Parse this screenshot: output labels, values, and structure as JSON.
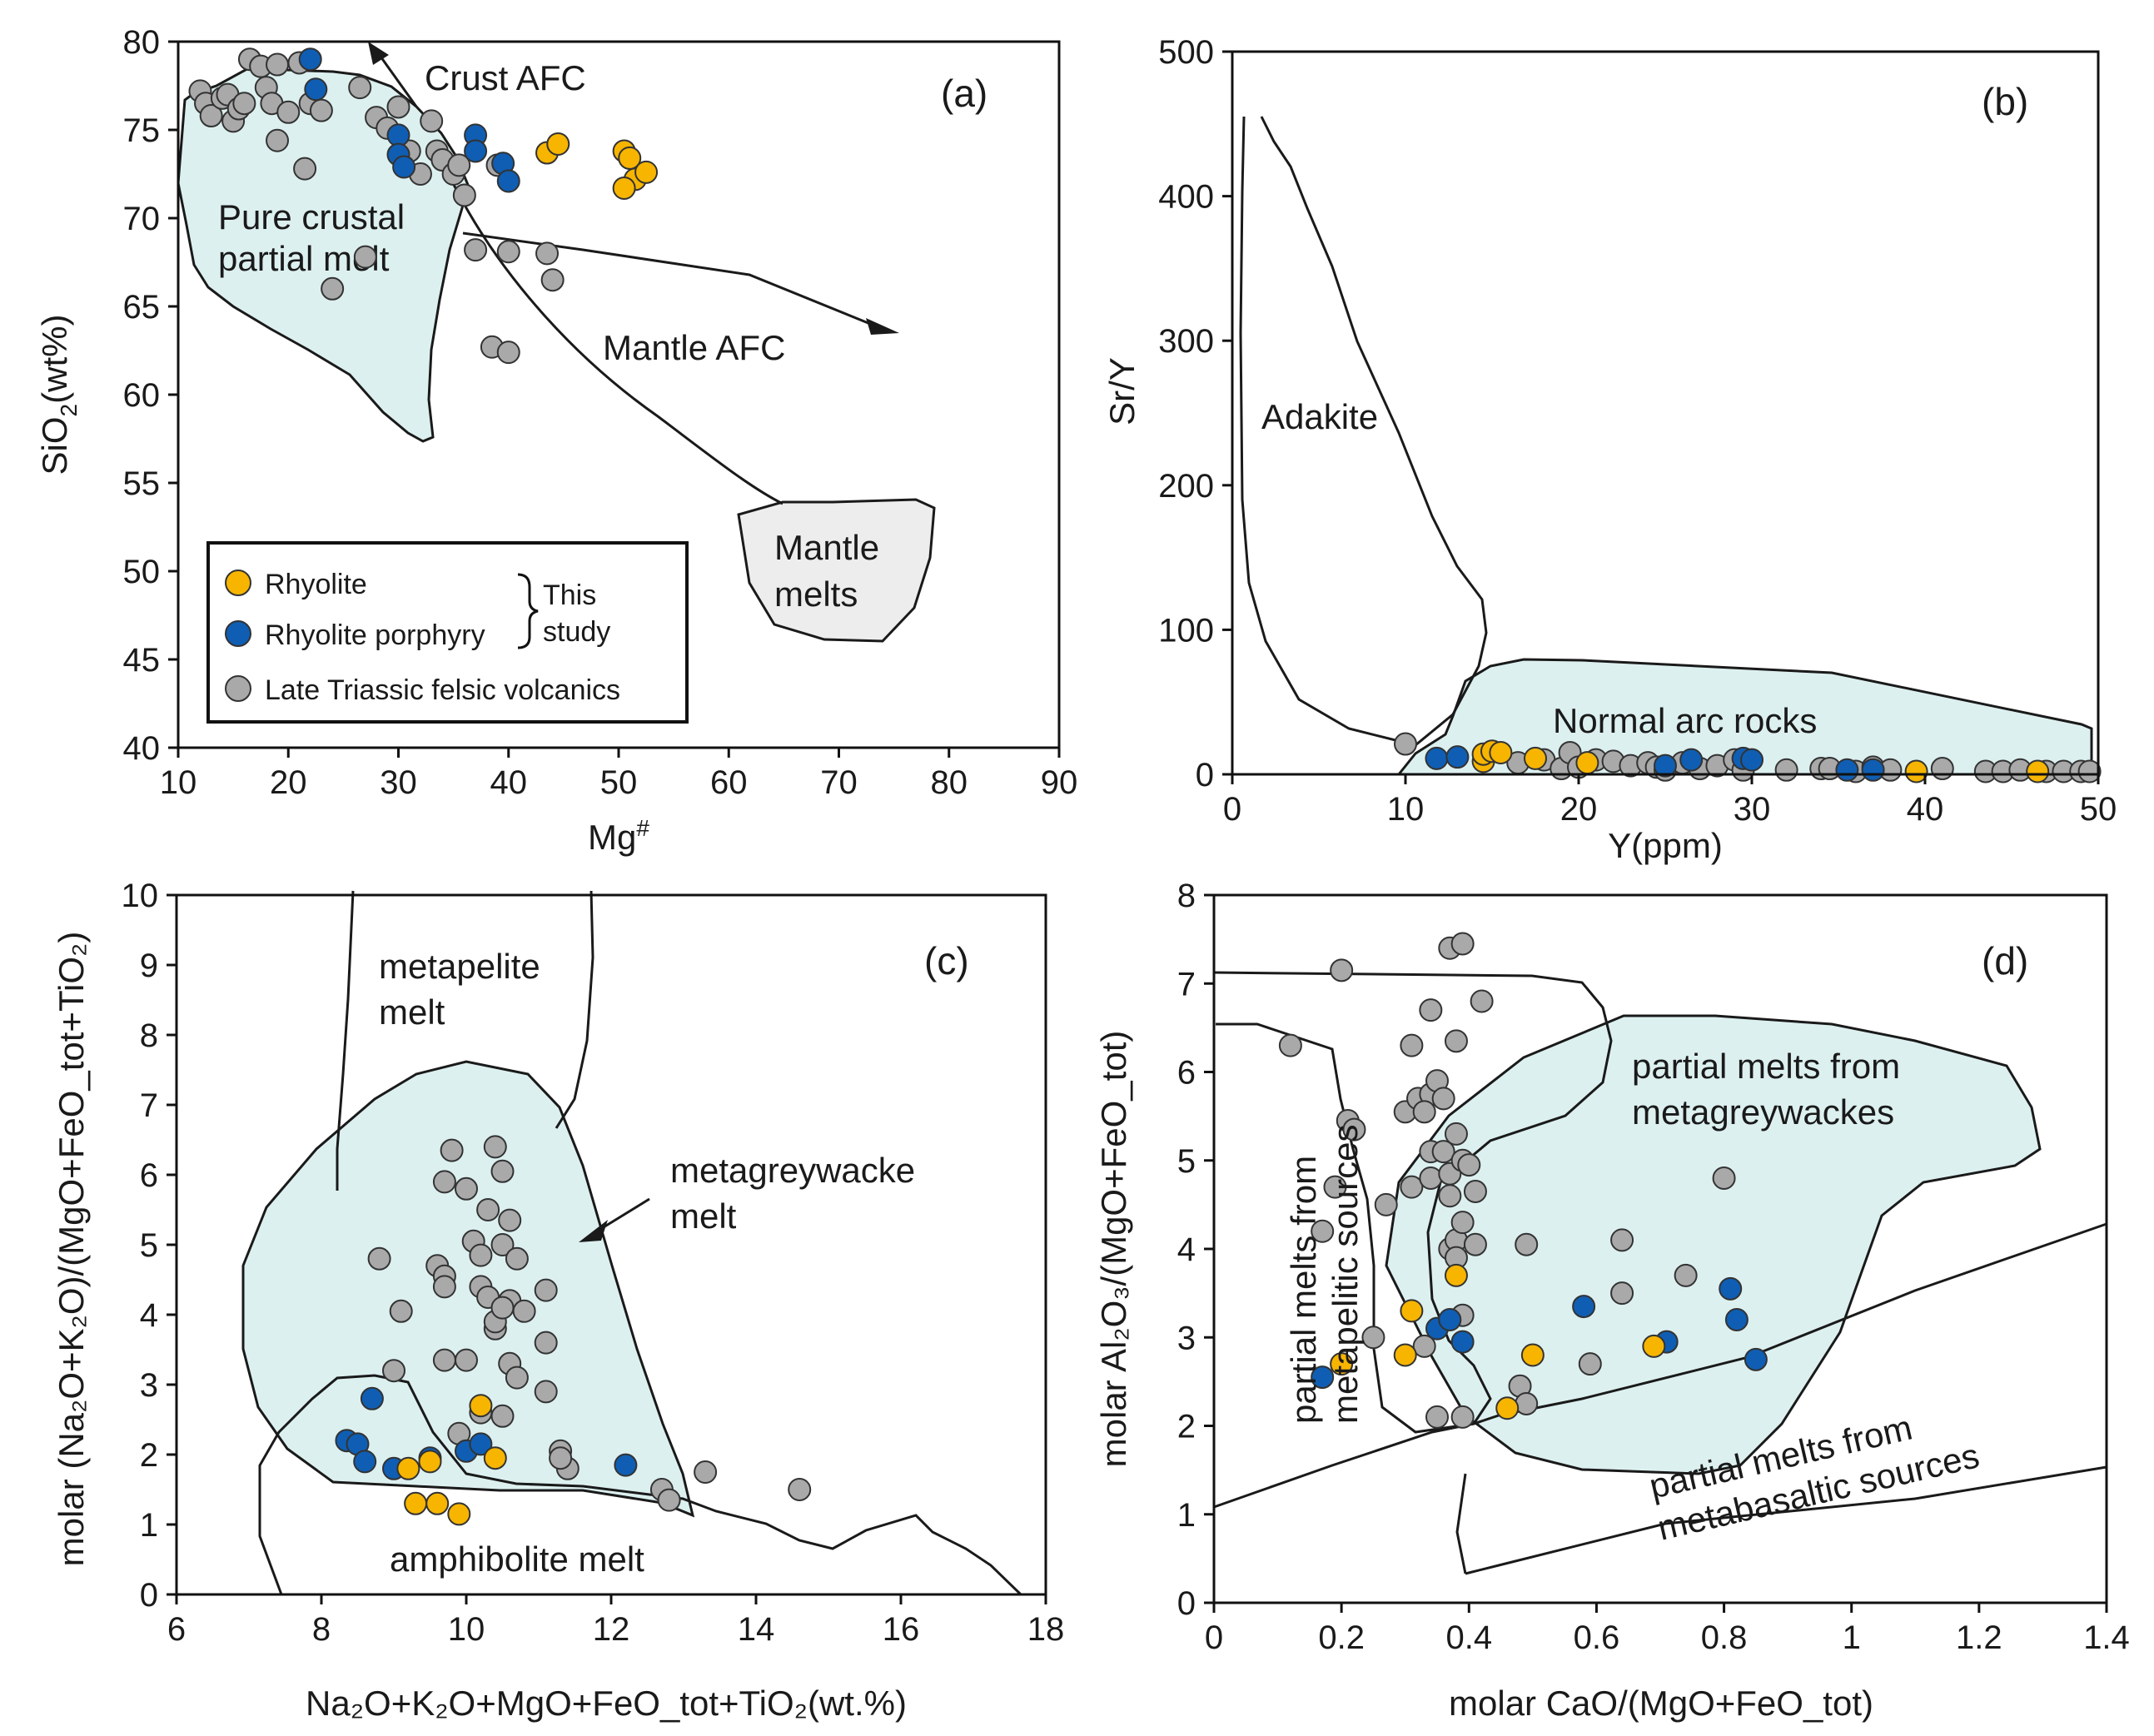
{
  "colors": {
    "rhyolite": "#F7B500",
    "rhyolite_porphyry": "#0F5EB3",
    "late_triassic": "#A9A9A9",
    "field_fill": "#DDF0F0",
    "mantle_fill": "#EDEDED"
  },
  "chart_data": [
    {
      "type": "scatter",
      "panel": "(a)",
      "xlabel_main": "Mg",
      "xlabel_sup": "#",
      "ylabel_pre": "SiO",
      "ylabel_sub": "2",
      "ylabel_post": "(wt%)",
      "xlim": [
        10,
        90
      ],
      "ylim": [
        40,
        80
      ],
      "xticks": [
        "10",
        "20",
        "30",
        "40",
        "50",
        "60",
        "70",
        "80",
        "90"
      ],
      "yticks": [
        "40",
        "45",
        "50",
        "55",
        "60",
        "65",
        "70",
        "75",
        "80"
      ],
      "annotations": {
        "crust_afc": "Crust AFC",
        "mantle_afc": "Mantle AFC",
        "pure_crustal_1": "Pure crustal",
        "pure_crustal_2": "partial melt",
        "mantle_melts_1": "Mantle",
        "mantle_melts_2": "melts"
      },
      "legend": {
        "rhyolite": "Rhyolite",
        "rhyolite_porphyry": "Rhyolite porphyry",
        "late_triassic": "Late  Triassic felsic volcanics",
        "this_study_1": "This",
        "this_study_2": "study"
      },
      "series": [
        {
          "name": "Late Triassic felsic volcanics",
          "key": "late_triassic",
          "points": [
            [
              12,
              77.2
            ],
            [
              12.5,
              76.5
            ],
            [
              13,
              75.8
            ],
            [
              14,
              76.8
            ],
            [
              14.5,
              77
            ],
            [
              15,
              75.5
            ],
            [
              15.5,
              76.2
            ],
            [
              16,
              76.5
            ],
            [
              16.5,
              79
            ],
            [
              17.5,
              78.6
            ],
            [
              18,
              77.4
            ],
            [
              18.5,
              76.5
            ],
            [
              19,
              78.7
            ],
            [
              19,
              74.4
            ],
            [
              20,
              76
            ],
            [
              21,
              78.8
            ],
            [
              21.5,
              72.8
            ],
            [
              22,
              76.5
            ],
            [
              23,
              76.1
            ],
            [
              24,
              66
            ],
            [
              26.5,
              77.4
            ],
            [
              27,
              67.8
            ],
            [
              28,
              75.7
            ],
            [
              29,
              75.1
            ],
            [
              30,
              76.3
            ],
            [
              31,
              73.8
            ],
            [
              32,
              72.5
            ],
            [
              33,
              75.5
            ],
            [
              33.5,
              73.8
            ],
            [
              34,
              73.3
            ],
            [
              35,
              72.5
            ],
            [
              35.5,
              73
            ],
            [
              36,
              71.3
            ],
            [
              37,
              68.2
            ],
            [
              38.5,
              62.7
            ],
            [
              39,
              73
            ],
            [
              40,
              62.4
            ],
            [
              40,
              68.1
            ],
            [
              43.5,
              68
            ],
            [
              44,
              66.5
            ]
          ]
        },
        {
          "name": "Rhyolite porphyry",
          "key": "rhyolite_porphyry",
          "points": [
            [
              22,
              79
            ],
            [
              22.5,
              77.3
            ],
            [
              30,
              74.7
            ],
            [
              30,
              73.6
            ],
            [
              30.5,
              72.9
            ],
            [
              37,
              74.7
            ],
            [
              37,
              73.8
            ],
            [
              39.5,
              73.1
            ],
            [
              40,
              72.1
            ]
          ]
        },
        {
          "name": "Rhyolite",
          "key": "rhyolite",
          "points": [
            [
              43.5,
              73.7
            ],
            [
              44.5,
              74.2
            ],
            [
              50.5,
              73.8
            ],
            [
              51,
              73.4
            ],
            [
              51.5,
              72.2
            ],
            [
              50.5,
              71.7
            ],
            [
              52.5,
              72.6
            ]
          ]
        }
      ]
    },
    {
      "type": "scatter",
      "panel": "(b)",
      "xlabel": "Y(ppm)",
      "ylabel": "Sr/Y",
      "xlim": [
        0,
        50
      ],
      "ylim": [
        0,
        500
      ],
      "xticks": [
        "0",
        "10",
        "20",
        "30",
        "40",
        "50"
      ],
      "yticks": [
        "0",
        "100",
        "200",
        "300",
        "400",
        "500"
      ],
      "annotations": {
        "adakite": "Adakite",
        "normal_arc": "Normal arc rocks"
      },
      "series": [
        {
          "name": "Late Triassic felsic volcanics",
          "key": "late_triassic",
          "points": [
            [
              10,
              21
            ],
            [
              16.5,
              8
            ],
            [
              18,
              10
            ],
            [
              19,
              4
            ],
            [
              19.5,
              15
            ],
            [
              20,
              5
            ],
            [
              21,
              10
            ],
            [
              22,
              9
            ],
            [
              23,
              6
            ],
            [
              24,
              8
            ],
            [
              24.5,
              5
            ],
            [
              25,
              3
            ],
            [
              26,
              8
            ],
            [
              27,
              4
            ],
            [
              28,
              6
            ],
            [
              29,
              10
            ],
            [
              29.5,
              3
            ],
            [
              32,
              3
            ],
            [
              34,
              4
            ],
            [
              34.5,
              4
            ],
            [
              36,
              2
            ],
            [
              37,
              5
            ],
            [
              38,
              3
            ],
            [
              41,
              4
            ],
            [
              43.5,
              2
            ],
            [
              44.5,
              2
            ],
            [
              45.5,
              3
            ],
            [
              47,
              2
            ],
            [
              48,
              2
            ],
            [
              49,
              2
            ],
            [
              49.5,
              2
            ]
          ]
        },
        {
          "name": "Rhyolite porphyry",
          "key": "rhyolite_porphyry",
          "points": [
            [
              11.8,
              11
            ],
            [
              13,
              12
            ],
            [
              25,
              6
            ],
            [
              26.5,
              10
            ],
            [
              29.5,
              11
            ],
            [
              30,
              10
            ],
            [
              35.5,
              3
            ],
            [
              37,
              3
            ]
          ]
        },
        {
          "name": "Rhyolite",
          "key": "rhyolite",
          "points": [
            [
              14.5,
              9
            ],
            [
              14.5,
              14
            ],
            [
              15,
              16
            ],
            [
              15.5,
              15
            ],
            [
              17.5,
              11
            ],
            [
              20.5,
              8
            ],
            [
              39.5,
              2
            ],
            [
              46.5,
              2
            ]
          ]
        }
      ]
    },
    {
      "type": "scatter",
      "panel": "(c)",
      "xlabel": "Na₂O+K₂O+MgO+FeO_tot+TiO₂(wt.%)",
      "ylabel": "molar (Na₂O+K₂O)/(MgO+FeO_tot+TiO₂)",
      "xlim": [
        6,
        18
      ],
      "ylim": [
        0,
        10
      ],
      "xticks": [
        "6",
        "8",
        "10",
        "12",
        "14",
        "16",
        "18"
      ],
      "yticks": [
        "0",
        "1",
        "2",
        "3",
        "4",
        "5",
        "6",
        "7",
        "8",
        "9",
        "10"
      ],
      "annotations": {
        "metapelite_1": "metapelite",
        "metapelite_2": "melt",
        "metagreywacke_1": "metagreywacke",
        "metagreywacke_2": "melt",
        "amphibolite": "amphibolite melt"
      },
      "series": [
        {
          "name": "Late Triassic felsic volcanics",
          "key": "late_triassic",
          "points": [
            [
              9.8,
              6.35
            ],
            [
              10.4,
              6.4
            ],
            [
              9.7,
              5.9
            ],
            [
              10,
              5.8
            ],
            [
              10.5,
              6.05
            ],
            [
              10.3,
              5.5
            ],
            [
              10.6,
              5.35
            ],
            [
              10.1,
              5.05
            ],
            [
              10.5,
              5
            ],
            [
              10.2,
              4.85
            ],
            [
              10.7,
              4.8
            ],
            [
              10.2,
              4.4
            ],
            [
              10.3,
              4.25
            ],
            [
              10.6,
              4.2
            ],
            [
              10.8,
              4.05
            ],
            [
              10.4,
              3.8
            ],
            [
              10.4,
              3.9
            ],
            [
              10.5,
              4.1
            ],
            [
              11.1,
              4.35
            ],
            [
              8.8,
              4.8
            ],
            [
              9.6,
              4.7
            ],
            [
              9.7,
              4.55
            ],
            [
              9.7,
              4.4
            ],
            [
              9.1,
              4.05
            ],
            [
              9.0,
              3.2
            ],
            [
              9.7,
              3.35
            ],
            [
              10.0,
              3.35
            ],
            [
              10.6,
              3.3
            ],
            [
              10.7,
              3.1
            ],
            [
              11.1,
              3.6
            ],
            [
              11.1,
              2.9
            ],
            [
              10.2,
              2.6
            ],
            [
              10.5,
              2.55
            ],
            [
              9.9,
              2.3
            ],
            [
              11.3,
              2.05
            ],
            [
              11.4,
              1.8
            ],
            [
              11.3,
              1.95
            ],
            [
              12.7,
              1.5
            ],
            [
              12.8,
              1.35
            ],
            [
              13.3,
              1.75
            ],
            [
              14.6,
              1.5
            ]
          ]
        },
        {
          "name": "Rhyolite porphyry",
          "key": "rhyolite_porphyry",
          "points": [
            [
              8.7,
              2.8
            ],
            [
              8.35,
              2.2
            ],
            [
              8.5,
              2.15
            ],
            [
              8.6,
              1.9
            ],
            [
              9.0,
              1.8
            ],
            [
              9.5,
              1.95
            ],
            [
              10.0,
              2.05
            ],
            [
              10.2,
              2.15
            ],
            [
              12.2,
              1.85
            ]
          ]
        },
        {
          "name": "Rhyolite",
          "key": "rhyolite",
          "points": [
            [
              10.2,
              2.7
            ],
            [
              9.2,
              1.8
            ],
            [
              9.5,
              1.9
            ],
            [
              10.4,
              1.95
            ],
            [
              9.3,
              1.3
            ],
            [
              9.6,
              1.3
            ],
            [
              9.9,
              1.15
            ]
          ]
        }
      ]
    },
    {
      "type": "scatter",
      "panel": "(d)",
      "xlabel": "molar CaO/(MgO+FeO_tot)",
      "ylabel": "molar Al₂O₃/(MgO+FeO_tot)",
      "xlim": [
        0,
        1.4
      ],
      "ylim": [
        0,
        8
      ],
      "xticks": [
        "0",
        "0.2",
        "0.4",
        "0.6",
        "0.8",
        "1",
        "1.2",
        "1.4"
      ],
      "yticks": [
        "0",
        "1",
        "2",
        "3",
        "4",
        "5",
        "6",
        "7",
        "8"
      ],
      "annotations": {
        "metagreywacke_1": "partial melts from",
        "metagreywacke_2": "metagreywackes",
        "metapelitic_1": "partial melts from",
        "metapelitic_2": "metapelitic sources",
        "metabasaltic_1": "partial melts from",
        "metabasaltic_2": "metabasaltic sources"
      },
      "series": [
        {
          "name": "Late Triassic felsic volcanics",
          "key": "late_triassic",
          "points": [
            [
              0.12,
              6.3
            ],
            [
              0.2,
              7.15
            ],
            [
              0.21,
              5.45
            ],
            [
              0.22,
              5.35
            ],
            [
              0.17,
              4.2
            ],
            [
              0.19,
              4.7
            ],
            [
              0.25,
              3
            ],
            [
              0.27,
              4.5
            ],
            [
              0.31,
              6.3
            ],
            [
              0.3,
              5.55
            ],
            [
              0.32,
              5.7
            ],
            [
              0.34,
              5.75
            ],
            [
              0.34,
              6.7
            ],
            [
              0.35,
              5.9
            ],
            [
              0.36,
              5.7
            ],
            [
              0.33,
              5.55
            ],
            [
              0.31,
              4.7
            ],
            [
              0.34,
              5.1
            ],
            [
              0.34,
              4.8
            ],
            [
              0.36,
              5.1
            ],
            [
              0.37,
              4.85
            ],
            [
              0.38,
              5.3
            ],
            [
              0.39,
              5
            ],
            [
              0.4,
              4.95
            ],
            [
              0.37,
              4.6
            ],
            [
              0.37,
              4
            ],
            [
              0.38,
              4.1
            ],
            [
              0.38,
              3.9
            ],
            [
              0.39,
              4.3
            ],
            [
              0.41,
              4.05
            ],
            [
              0.41,
              4.65
            ],
            [
              0.37,
              7.4
            ],
            [
              0.39,
              7.45
            ],
            [
              0.38,
              6.35
            ],
            [
              0.42,
              6.8
            ],
            [
              0.39,
              3.25
            ],
            [
              0.33,
              2.9
            ],
            [
              0.35,
              2.1
            ],
            [
              0.39,
              2.1
            ],
            [
              0.48,
              2.45
            ],
            [
              0.49,
              2.25
            ],
            [
              0.49,
              4.05
            ],
            [
              0.59,
              2.7
            ],
            [
              0.64,
              3.5
            ],
            [
              0.64,
              4.1
            ],
            [
              0.74,
              3.7
            ],
            [
              0.8,
              4.8
            ]
          ]
        },
        {
          "name": "Rhyolite porphyry",
          "key": "rhyolite_porphyry",
          "points": [
            [
              0.17,
              2.55
            ],
            [
              0.35,
              3.1
            ],
            [
              0.37,
              3.2
            ],
            [
              0.39,
              2.95
            ],
            [
              0.58,
              3.35
            ],
            [
              0.71,
              2.95
            ],
            [
              0.81,
              3.55
            ],
            [
              0.82,
              3.2
            ],
            [
              0.85,
              2.75
            ]
          ]
        },
        {
          "name": "Rhyolite",
          "key": "rhyolite",
          "points": [
            [
              0.2,
              2.7
            ],
            [
              0.3,
              2.8
            ],
            [
              0.31,
              3.3
            ],
            [
              0.38,
              3.7
            ],
            [
              0.46,
              2.2
            ],
            [
              0.5,
              2.8
            ],
            [
              0.69,
              2.9
            ]
          ]
        }
      ]
    }
  ]
}
